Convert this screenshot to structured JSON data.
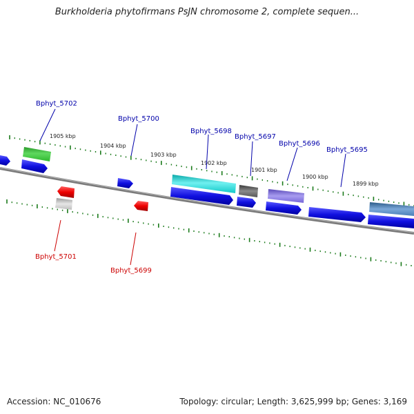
{
  "header": {
    "title": "Burkholderia phytofirmans PsJN chromosome 2, complete sequen..."
  },
  "footer": {
    "accession": "Accession: NC_010676",
    "topology": "Topology: circular; Length: 3,625,999 bp; Genes: 3,169"
  },
  "colors": {
    "blue_gene": "#1515e0",
    "forward_label": "#0000aa",
    "reverse_label": "#cc0000",
    "tick": "#1a7a1a",
    "backbone": "#808080"
  },
  "scale_labels": [
    "1905 kbp",
    "1904 kbp",
    "1903 kbp",
    "1902 kbp",
    "1901 kbp",
    "1900 kbp",
    "1899 kbp"
  ],
  "gene_labels_forward": [
    "Bphyt_5702",
    "Bphyt_5700",
    "Bphyt_5698",
    "Bphyt_5697",
    "Bphyt_5696",
    "Bphyt_5695"
  ],
  "gene_labels_reverse": [
    "Bphyt_5701",
    "Bphyt_5699"
  ]
}
